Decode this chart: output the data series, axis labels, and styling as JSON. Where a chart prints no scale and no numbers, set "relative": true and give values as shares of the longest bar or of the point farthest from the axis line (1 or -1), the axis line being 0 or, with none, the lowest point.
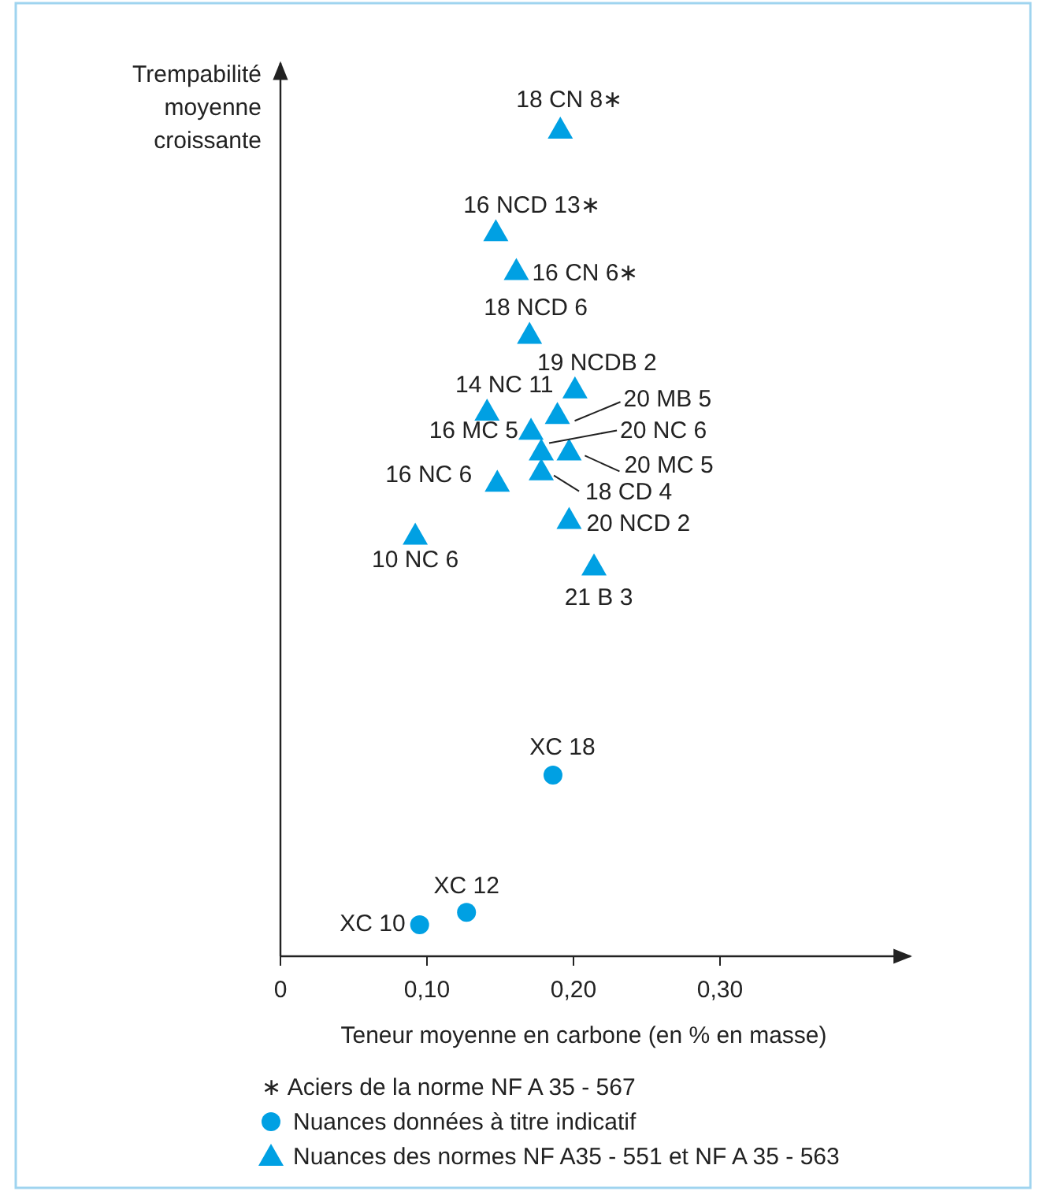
{
  "chart_data": {
    "type": "scatter",
    "relative": true,
    "xlabel": "Teneur moyenne en carbone (en % en masse)",
    "ylabel": "Trempabilité\nmoyenne\ncroissante",
    "xlim": [
      0,
      0.43
    ],
    "xticks": [
      0,
      {
        "value": 0.1,
        "label": "0,10"
      },
      {
        "value": 0.2,
        "label": "0,20"
      },
      {
        "value": 0.3,
        "label": "0,30"
      }
    ],
    "grid": false,
    "legend": "bottom",
    "series": [
      {
        "name": "Nuances données à titre indicatif",
        "color": "#00a0e3",
        "marker": "circle",
        "x": [
          0.186,
          0.127,
          0.095
        ],
        "values": [
          0.219,
          0.053,
          0.038
        ]
      },
      {
        "name": "Nuances des normes NF A35 - 551 et NF A 35 - 563",
        "color": "#00a0e3",
        "marker": "triangle",
        "x": [
          0.191,
          0.147,
          0.161,
          0.17,
          0.201,
          0.141,
          0.189,
          0.171,
          0.178,
          0.197,
          0.178,
          0.148,
          0.197,
          0.092,
          0.214
        ],
        "values": [
          1,
          0.876,
          0.829,
          0.752,
          0.686,
          0.659,
          0.655,
          0.636,
          0.611,
          0.611,
          0.587,
          0.573,
          0.528,
          0.509,
          0.472
        ]
      }
    ],
    "annotations": [
      {
        "text": "18 CN 8∗",
        "x": 0.191,
        "y": 1
      },
      {
        "text": "16 NCD 13∗",
        "x": 0.147,
        "y": 0.876
      },
      {
        "text": "16 CN 6∗",
        "x": 0.161,
        "y": 0.829
      },
      {
        "text": "18 NCD 6",
        "x": 0.17,
        "y": 0.752
      },
      {
        "text": "19 NCDB 2",
        "x": 0.201,
        "y": 0.686
      },
      {
        "text": "14 NC 11",
        "x": 0.141,
        "y": 0.659
      },
      {
        "text": "20 MB 5",
        "x": 0.189,
        "y": 0.655
      },
      {
        "text": "16 MC 5",
        "x": 0.171,
        "y": 0.636
      },
      {
        "text": "20 NC 6",
        "x": 0.178,
        "y": 0.611
      },
      {
        "text": "20 MC 5",
        "x": 0.197,
        "y": 0.611
      },
      {
        "text": "18 CD 4",
        "x": 0.178,
        "y": 0.587
      },
      {
        "text": "16 NC 6",
        "x": 0.148,
        "y": 0.573
      },
      {
        "text": "20 NCD 2",
        "x": 0.197,
        "y": 0.528
      },
      {
        "text": "10 NC 6",
        "x": 0.092,
        "y": 0.509
      },
      {
        "text": "21 B 3",
        "x": 0.214,
        "y": 0.472
      },
      {
        "text": "XC 18",
        "x": 0.186,
        "y": 0.219
      },
      {
        "text": "XC 12",
        "x": 0.127,
        "y": 0.053
      },
      {
        "text": "XC 10",
        "x": 0.095,
        "y": 0.038
      },
      "∗ Aciers de la norme NF A 35 - 567"
    ]
  }
}
